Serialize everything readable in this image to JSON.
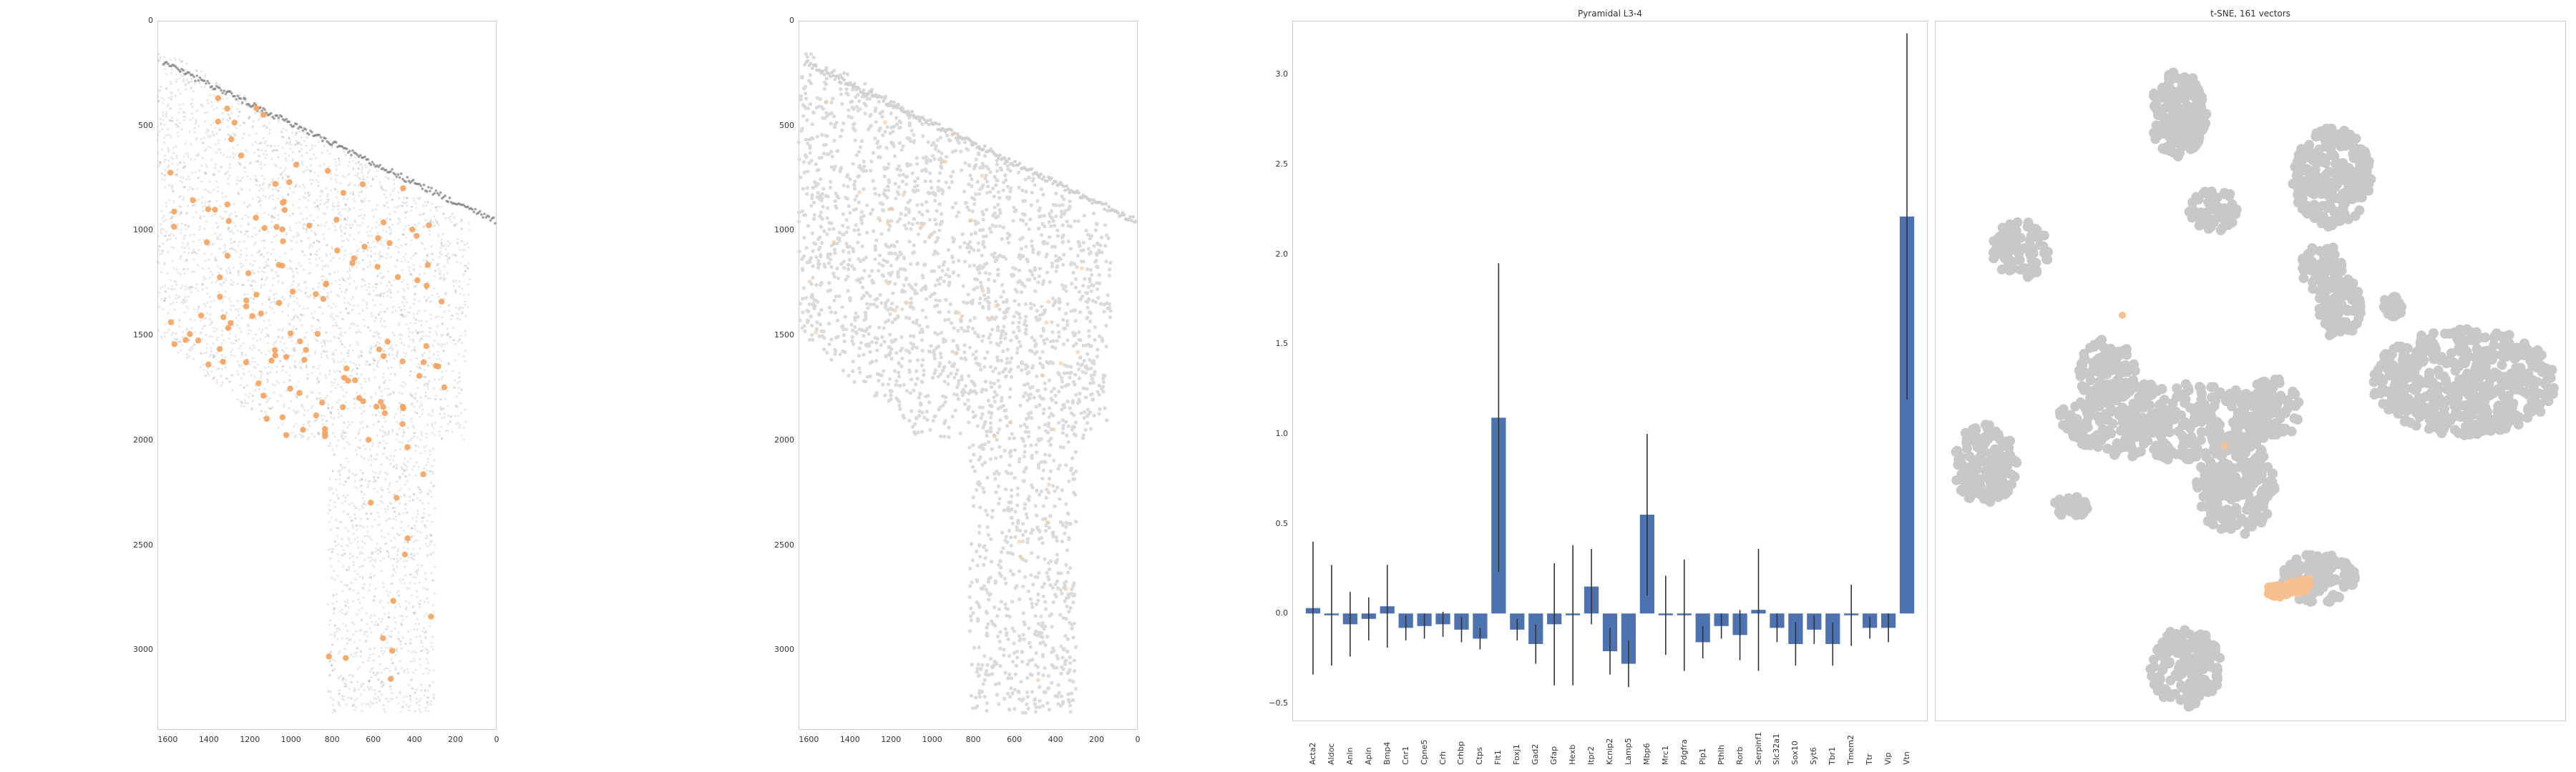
{
  "chart_data": [
    {
      "type": "scatter",
      "panel": "spatial-overlay",
      "title": "",
      "xlim": [
        1650,
        0
      ],
      "ylim": [
        3380,
        0
      ],
      "x_ticks": [
        "1600",
        "1400",
        "1200",
        "1000",
        "800",
        "600",
        "400",
        "200",
        "0"
      ],
      "y_ticks": [
        "0",
        "500",
        "1000",
        "1500",
        "2000",
        "2500",
        "3000"
      ],
      "colors": {
        "background": "#9a9a9a",
        "highlight": "#f5a25d"
      }
    },
    {
      "type": "scatter",
      "panel": "spatial-cells",
      "title": "",
      "xlim": [
        1650,
        0
      ],
      "ylim": [
        3380,
        0
      ],
      "x_ticks": [
        "1600",
        "1400",
        "1200",
        "1000",
        "800",
        "600",
        "400",
        "200",
        "0"
      ],
      "y_ticks": [
        "0",
        "500",
        "1000",
        "1500",
        "2000",
        "2500",
        "3000"
      ],
      "colors": {
        "background": "#d9d9d9",
        "highlight": "#f7c49a"
      }
    },
    {
      "type": "bar",
      "title": "Pyramidal L3-4",
      "categories": [
        "Acta2",
        "Aldoc",
        "Anln",
        "Apln",
        "Bmp4",
        "Cnr1",
        "Cpne5",
        "Crh",
        "Crhbp",
        "Ctps",
        "Flt1",
        "Foxj1",
        "Gad2",
        "Gfap",
        "Hexb",
        "Itpr2",
        "Kcnip2",
        "Lamp5",
        "Mbp6",
        "Mrc1",
        "Pdgfra",
        "Plp1",
        "Pthlh",
        "Rorb",
        "Serpinf1",
        "Slc32a1",
        "Sox10",
        "Syt6",
        "Tbr1",
        "Tmem2",
        "Ttr",
        "Vip",
        "Vtn"
      ],
      "values": [
        0.03,
        -0.01,
        -0.06,
        -0.03,
        0.04,
        -0.08,
        -0.07,
        -0.06,
        -0.09,
        -0.14,
        1.09,
        -0.09,
        -0.17,
        -0.06,
        -0.01,
        0.15,
        -0.21,
        -0.28,
        0.55,
        -0.01,
        -0.01,
        -0.16,
        -0.07,
        -0.12,
        0.02,
        -0.08,
        -0.17,
        -0.09,
        -0.17,
        -0.01,
        -0.08,
        -0.08,
        2.21
      ],
      "errors": [
        0.37,
        0.28,
        0.18,
        0.12,
        0.23,
        0.07,
        0.07,
        0.07,
        0.07,
        0.06,
        0.86,
        0.06,
        0.11,
        0.34,
        0.39,
        0.21,
        0.13,
        0.13,
        0.45,
        0.22,
        0.31,
        0.09,
        0.07,
        0.14,
        0.34,
        0.08,
        0.12,
        0.08,
        0.12,
        0.17,
        0.06,
        0.08,
        1.02
      ],
      "ylim": [
        -0.6,
        3.3
      ],
      "y_ticks": [
        -0.5,
        0.0,
        0.5,
        1.0,
        1.5,
        2.0,
        2.5,
        3.0
      ],
      "y_tick_labels": [
        "−0.5",
        "0.0",
        "0.5",
        "1.0",
        "1.5",
        "2.0",
        "2.5",
        "3.0"
      ],
      "colors": {
        "bar": "#4c72b0",
        "error": "#333333"
      }
    },
    {
      "type": "scatter",
      "title": "t-SNE, 161 vectors",
      "colors": {
        "background": "#c8c8c8",
        "highlight": "#f7c08f"
      }
    }
  ]
}
